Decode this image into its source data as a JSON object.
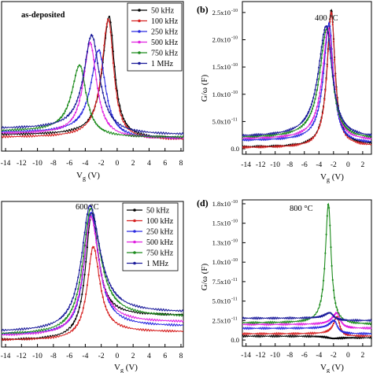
{
  "legend_entries": [
    "50 kHz",
    "100 kHz",
    "250 kHz",
    "500 kHz",
    "750 kHz",
    "1 MHz"
  ],
  "series_colors": [
    "#000000",
    "#d62020",
    "#2a2ae0",
    "#e020e0",
    "#1a8a1a",
    "#1a1a9a"
  ],
  "chart_data": [
    {
      "panel": "a",
      "type": "line",
      "annotation": "as-deposited",
      "panel_label": "",
      "xlabel": "V_g (V)",
      "ylabel": "",
      "xlim": [
        -14.5,
        8.3
      ],
      "ylim": [
        -0.08,
        1.12
      ],
      "x_ticks": [
        -14,
        -12,
        -10,
        -8,
        -6,
        -4,
        -2,
        0,
        2,
        4,
        6,
        8
      ],
      "x_tick_labels": [
        "-14",
        "-12",
        "-10",
        "-8",
        "-6",
        "-4",
        "-2",
        "0",
        "2",
        "4",
        "6",
        "8"
      ],
      "y_ticks": [],
      "y_tick_labels": [],
      "legend_position": "top-right",
      "series": [
        {
          "name": "50 kHz",
          "peak_x": -1.0,
          "peak_y": 1.0,
          "left_width": 1.0,
          "right_width": 0.8,
          "left_baseline": 0.05,
          "right_baseline": 0.02
        },
        {
          "name": "100 kHz",
          "peak_x": -1.1,
          "peak_y": 0.98,
          "left_width": 1.0,
          "right_width": 0.8,
          "left_baseline": 0.03,
          "right_baseline": 0.01
        },
        {
          "name": "250 kHz",
          "peak_x": -2.3,
          "peak_y": 0.73,
          "left_width": 1.2,
          "right_width": 1.0,
          "left_baseline": 0.07,
          "right_baseline": 0.02
        },
        {
          "name": "500 kHz",
          "peak_x": -3.4,
          "peak_y": 0.79,
          "left_width": 1.0,
          "right_width": 1.0,
          "left_baseline": 0.06,
          "right_baseline": 0.02
        },
        {
          "name": "750 kHz",
          "peak_x": -4.7,
          "peak_y": 0.61,
          "left_width": 1.2,
          "right_width": 1.0,
          "left_baseline": 0.08,
          "right_baseline": 0.03
        },
        {
          "name": "1 MHz",
          "peak_x": -3.2,
          "peak_y": 0.85,
          "left_width": 1.2,
          "right_width": 1.2,
          "left_baseline": 0.1,
          "right_baseline": 0.05
        }
      ]
    },
    {
      "panel": "b",
      "type": "line",
      "annotation": "400 °C",
      "panel_label": "(b)",
      "xlabel": "V_g (V)",
      "ylabel": "G/ω (F)",
      "xlim": [
        -14.5,
        3.2
      ],
      "ylim": [
        -1e-11,
        2.7e-10
      ],
      "x_ticks": [
        -14,
        -12,
        -10,
        -8,
        -6,
        -4,
        -2,
        0,
        2
      ],
      "x_tick_labels": [
        "-14",
        "-12",
        "-10",
        "-8",
        "-6",
        "-4",
        "-2",
        "0",
        "2"
      ],
      "y_ticks": [
        0,
        5e-11,
        1e-10,
        1.5e-10,
        2e-10,
        2.5e-10
      ],
      "y_tick_labels": [
        "0.0",
        "5.0x10",
        "1.0x10",
        "1.5x10",
        "2.0x10",
        "2.5x10"
      ],
      "y_tick_exponents": [
        "",
        "-11",
        "-10",
        "-10",
        "-10",
        "-10"
      ],
      "series": [
        {
          "name": "50 kHz",
          "peak_x": -2.3,
          "peak_y": 2.55e-10,
          "left_width": 0.7,
          "right_width": 0.6,
          "left_baseline": 3e-12,
          "right_baseline": 8e-12
        },
        {
          "name": "100 kHz",
          "peak_x": -2.3,
          "peak_y": 2.5e-10,
          "left_width": 0.7,
          "right_width": 0.6,
          "left_baseline": 2e-12,
          "right_baseline": 5e-12
        },
        {
          "name": "250 kHz",
          "peak_x": -2.6,
          "peak_y": 2.3e-10,
          "left_width": 0.9,
          "right_width": 0.7,
          "left_baseline": 1.5e-11,
          "right_baseline": 1e-11
        },
        {
          "name": "500 kHz",
          "peak_x": -2.7,
          "peak_y": 2.2e-10,
          "left_width": 1.0,
          "right_width": 0.8,
          "left_baseline": 1.8e-11,
          "right_baseline": 1.5e-11
        },
        {
          "name": "750 kHz",
          "peak_x": -2.9,
          "peak_y": 2.2e-10,
          "left_width": 1.2,
          "right_width": 0.9,
          "left_baseline": 2e-11,
          "right_baseline": 1.8e-11
        },
        {
          "name": "1 MHz",
          "peak_x": -3.0,
          "peak_y": 2.25e-10,
          "left_width": 1.3,
          "right_width": 1.0,
          "left_baseline": 2.2e-11,
          "right_baseline": 2e-11
        }
      ]
    },
    {
      "panel": "c",
      "type": "line",
      "annotation": "600 °C",
      "panel_label": "",
      "xlabel": "V_g (V)",
      "ylabel": "",
      "xlim": [
        -14.5,
        8.3
      ],
      "ylim": [
        -0.03,
        1.03
      ],
      "x_ticks": [
        -14,
        -12,
        -10,
        -8,
        -6,
        -4,
        -2,
        0,
        2,
        4,
        6,
        8
      ],
      "x_tick_labels": [
        "-14",
        "-12",
        "-10",
        "-8",
        "-6",
        "-4",
        "-2",
        "0",
        "2",
        "4",
        "6",
        "8"
      ],
      "y_ticks": [],
      "y_tick_labels": [],
      "legend_position": "top-right",
      "series": [
        {
          "name": "50 kHz",
          "peak_x": -3.2,
          "peak_y": 0.95,
          "left_width": 0.9,
          "right_width": 1.0,
          "left_baseline": 0.02,
          "right_baseline": 0.2
        },
        {
          "name": "100 kHz",
          "peak_x": -3.0,
          "peak_y": 0.7,
          "left_width": 0.9,
          "right_width": 1.0,
          "left_baseline": 0.02,
          "right_baseline": 0.08
        },
        {
          "name": "250 kHz",
          "peak_x": -3.3,
          "peak_y": 0.95,
          "left_width": 1.0,
          "right_width": 1.2,
          "left_baseline": 0.06,
          "right_baseline": 0.12
        },
        {
          "name": "500 kHz",
          "peak_x": -3.3,
          "peak_y": 0.92,
          "left_width": 1.1,
          "right_width": 1.2,
          "left_baseline": 0.05,
          "right_baseline": 0.15
        },
        {
          "name": "750 kHz",
          "peak_x": -3.3,
          "peak_y": 0.98,
          "left_width": 1.2,
          "right_width": 1.4,
          "left_baseline": 0.06,
          "right_baseline": 0.19
        },
        {
          "name": "1 MHz",
          "peak_x": -3.4,
          "peak_y": 1.0,
          "left_width": 1.3,
          "right_width": 1.5,
          "left_baseline": 0.08,
          "right_baseline": 0.22
        }
      ]
    },
    {
      "panel": "d",
      "type": "line",
      "annotation": "800 °C",
      "panel_label": "(d)",
      "xlabel": "V_g (V)",
      "ylabel": "G/ω (F)",
      "xlim": [
        -14.5,
        3.2
      ],
      "ylim": [
        -8e-12,
        1.8e-10
      ],
      "x_ticks": [
        -14,
        -12,
        -10,
        -8,
        -6,
        -4,
        -2,
        0,
        2
      ],
      "x_tick_labels": [
        "-14",
        "-12",
        "-10",
        "-8",
        "-6",
        "-4",
        "-2",
        "0",
        "2"
      ],
      "y_ticks": [
        0,
        2.5e-11,
        5e-11,
        7.5e-11,
        1e-10,
        1.25e-10,
        1.5e-10,
        1.75e-10
      ],
      "y_tick_labels": [
        "0.0",
        "2.5x10",
        "5.0x10",
        "7.5x10",
        "1.0x10",
        "1.3x10",
        "1.5x10",
        "1.8x10"
      ],
      "y_tick_exponents": [
        "",
        "-11",
        "-11",
        "-11",
        "-10",
        "-10",
        "-10",
        "-10"
      ],
      "series": [
        {
          "name": "50 kHz",
          "peak_x": -2.0,
          "peak_y": 2e-12,
          "left_width": 1.0,
          "right_width": 1.0,
          "left_baseline": 5e-12,
          "right_baseline": 3e-12
        },
        {
          "name": "100 kHz",
          "peak_x": -1.5,
          "peak_y": 3e-11,
          "left_width": 0.6,
          "right_width": 0.4,
          "left_baseline": 8e-12,
          "right_baseline": 5e-12
        },
        {
          "name": "250 kHz",
          "peak_x": -1.9,
          "peak_y": 2.5e-11,
          "left_width": 0.8,
          "right_width": 0.5,
          "left_baseline": 1.5e-11,
          "right_baseline": 8e-12
        },
        {
          "name": "500 kHz",
          "peak_x": -1.5,
          "peak_y": 3.5e-11,
          "left_width": 0.8,
          "right_width": 0.5,
          "left_baseline": 2e-11,
          "right_baseline": 1.5e-11
        },
        {
          "name": "750 kHz",
          "peak_x": -2.7,
          "peak_y": 1.75e-10,
          "left_width": 0.5,
          "right_width": 0.45,
          "left_baseline": 2.2e-11,
          "right_baseline": 2e-11
        },
        {
          "name": "1 MHz",
          "peak_x": -2.5,
          "peak_y": 3.5e-11,
          "left_width": 0.9,
          "right_width": 0.6,
          "left_baseline": 2.8e-11,
          "right_baseline": 2.5e-11
        }
      ]
    }
  ]
}
